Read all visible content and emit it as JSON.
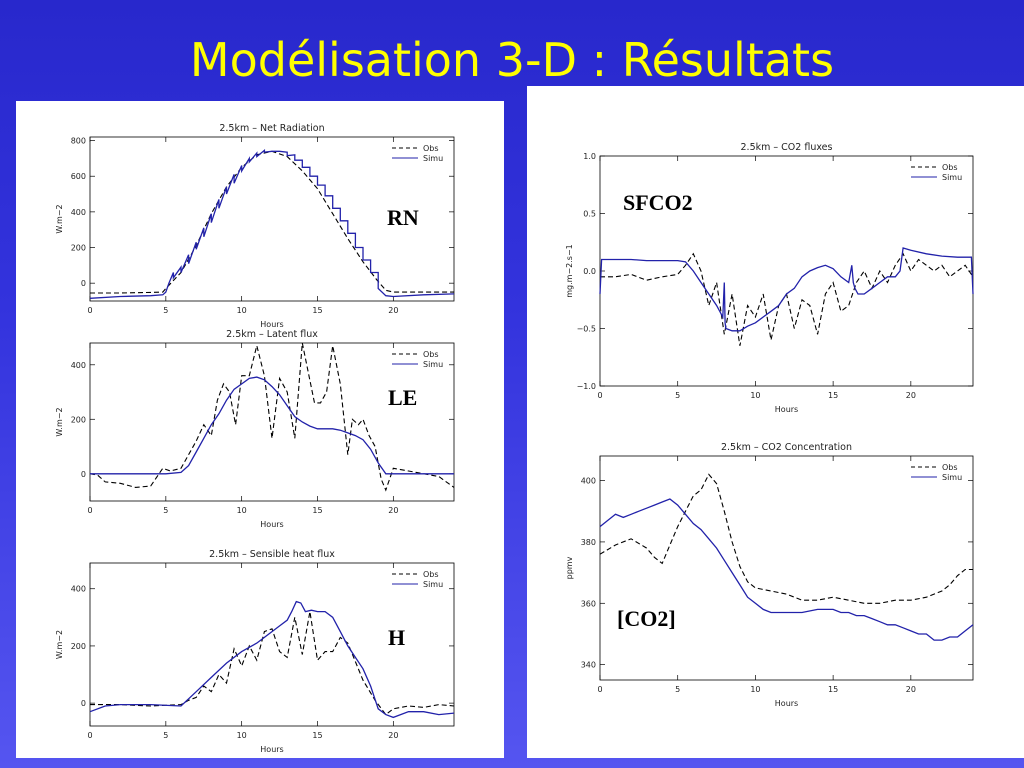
{
  "slide": {
    "title": "Modélisation 3-D : Résultats"
  },
  "colors": {
    "obs": "#000000",
    "simu": "#2222aa",
    "title": "#ffff00"
  },
  "tags": {
    "rn": "RN",
    "le": "LE",
    "h": "H",
    "sfco2": "SFCO2",
    "co2": "[CO2]"
  },
  "chart_data": [
    {
      "id": "rn",
      "type": "line",
      "title": "2.5km  –  Net Radiation",
      "xlabel": "Hours",
      "ylabel": "W.m−2",
      "xlim": [
        0,
        24
      ],
      "ylim": [
        -100,
        820
      ],
      "xticks": [
        0,
        5,
        10,
        15,
        20
      ],
      "yticks": [
        0,
        200,
        400,
        600,
        800
      ],
      "ytick_labels": [
        "0",
        "200",
        "400",
        "600",
        "800"
      ],
      "legend": [
        "Obs",
        "Simu"
      ],
      "series": [
        {
          "name": "Obs",
          "style": "dashed",
          "x": [
            0,
            2,
            4,
            4.8,
            5,
            6,
            7,
            8,
            9,
            10,
            11,
            12,
            13,
            14,
            15,
            16,
            17,
            18,
            18.9,
            19.5,
            20,
            22,
            24
          ],
          "y": [
            -55,
            -55,
            -52,
            -50,
            -30,
            60,
            210,
            390,
            540,
            650,
            720,
            740,
            710,
            630,
            530,
            390,
            250,
            120,
            20,
            -40,
            -50,
            -50,
            -50
          ]
        },
        {
          "name": "Simu",
          "style": "solid",
          "x": [
            0,
            2,
            4,
            4.8,
            5,
            5.2,
            5.5,
            5.5,
            6,
            6,
            6.5,
            6.5,
            7,
            7,
            7.5,
            7.5,
            8,
            8,
            8.5,
            8.5,
            9,
            9,
            9.5,
            9.5,
            10,
            10,
            10.5,
            10.5,
            11,
            11,
            11.5,
            11.5,
            12,
            12.5,
            13,
            13,
            13.5,
            13.5,
            14,
            14,
            14.5,
            14.5,
            15,
            15,
            15.5,
            15.5,
            16,
            16,
            16.5,
            16.5,
            17,
            17,
            17.5,
            17.5,
            18,
            18,
            18.5,
            18.5,
            19,
            19,
            19.5,
            20,
            22,
            24
          ],
          "y": [
            -85,
            -75,
            -70,
            -65,
            -50,
            0,
            60,
            30,
            90,
            60,
            160,
            110,
            230,
            190,
            310,
            260,
            390,
            340,
            470,
            420,
            540,
            500,
            610,
            560,
            660,
            630,
            700,
            680,
            730,
            710,
            745,
            735,
            740,
            740,
            735,
            715,
            720,
            690,
            690,
            650,
            650,
            600,
            600,
            550,
            550,
            490,
            490,
            420,
            420,
            350,
            350,
            280,
            280,
            200,
            200,
            130,
            130,
            60,
            60,
            -30,
            -70,
            -75,
            -65,
            -60
          ]
        }
      ]
    },
    {
      "id": "le",
      "type": "line",
      "title": "2.5km  –  Latent flux",
      "xlabel": "Hours",
      "ylabel": "W.m−2",
      "xlim": [
        0,
        24
      ],
      "ylim": [
        -100,
        480
      ],
      "xticks": [
        0,
        5,
        10,
        15,
        20
      ],
      "yticks": [
        0,
        200,
        400
      ],
      "ytick_labels": [
        "0",
        "200",
        "400"
      ],
      "legend": [
        "Obs",
        "Simu"
      ],
      "series": [
        {
          "name": "Obs",
          "style": "dashed",
          "x": [
            0,
            0.5,
            1,
            2,
            3,
            4,
            4.8,
            5.3,
            6,
            7,
            7.5,
            8,
            8.4,
            8.8,
            9.2,
            9.6,
            10,
            10.5,
            11,
            11.5,
            12,
            12.5,
            13,
            13.5,
            14,
            14.4,
            14.8,
            15.2,
            15.6,
            16,
            16.5,
            17,
            17.3,
            17.7,
            18,
            18.4,
            18.8,
            19.2,
            19.5,
            20,
            21,
            22,
            23,
            24
          ],
          "y": [
            0,
            -5,
            -30,
            -35,
            -50,
            -45,
            20,
            10,
            20,
            120,
            180,
            140,
            270,
            330,
            300,
            180,
            360,
            360,
            470,
            360,
            130,
            350,
            300,
            130,
            480,
            370,
            260,
            260,
            300,
            470,
            330,
            70,
            200,
            180,
            200,
            140,
            100,
            -20,
            -60,
            20,
            10,
            0,
            -10,
            -50
          ]
        },
        {
          "name": "Simu",
          "style": "solid",
          "x": [
            0,
            2,
            4,
            5,
            6,
            6.5,
            7,
            7.5,
            8,
            8.5,
            9,
            9.5,
            10,
            10.5,
            11,
            11.5,
            12,
            12.5,
            13,
            13.5,
            14,
            14.5,
            15,
            15.5,
            16,
            16.5,
            17,
            17.5,
            18,
            18.5,
            19,
            19.5,
            20,
            22,
            24
          ],
          "y": [
            0,
            0,
            0,
            0,
            5,
            30,
            80,
            130,
            180,
            220,
            270,
            310,
            330,
            350,
            355,
            345,
            320,
            290,
            250,
            210,
            190,
            175,
            165,
            165,
            165,
            160,
            150,
            140,
            125,
            90,
            40,
            0,
            0,
            0,
            0
          ]
        }
      ]
    },
    {
      "id": "h",
      "type": "line",
      "title": "2.5km  –  Sensible heat flux",
      "xlabel": "Hours",
      "ylabel": "W.m−2",
      "xlim": [
        0,
        24
      ],
      "ylim": [
        -80,
        490
      ],
      "xticks": [
        0,
        5,
        10,
        15,
        20
      ],
      "yticks": [
        0,
        200,
        400
      ],
      "ytick_labels": [
        "0",
        "200",
        "400"
      ],
      "legend": [
        "Obs",
        "Simu"
      ],
      "series": [
        {
          "name": "Obs",
          "style": "dashed",
          "x": [
            0,
            2,
            4,
            6,
            6.5,
            7,
            7.5,
            8,
            8.5,
            9,
            9.5,
            10,
            10.5,
            11,
            11.5,
            12,
            12.5,
            13,
            13.5,
            14,
            14.5,
            15,
            15.5,
            16,
            16.5,
            17,
            18,
            18.8,
            19.5,
            20,
            21,
            22,
            23,
            24
          ],
          "y": [
            -5,
            -5,
            -10,
            -5,
            10,
            20,
            60,
            40,
            100,
            70,
            190,
            130,
            200,
            150,
            250,
            260,
            180,
            160,
            300,
            170,
            320,
            150,
            180,
            180,
            230,
            210,
            80,
            10,
            -40,
            -20,
            -10,
            -15,
            -5,
            -10
          ]
        },
        {
          "name": "Simu",
          "style": "solid",
          "x": [
            0,
            1,
            2,
            4,
            6,
            7,
            8,
            9,
            10,
            11,
            12,
            12.5,
            13,
            13.3,
            13.6,
            13.9,
            14.2,
            14.6,
            15,
            15.5,
            16,
            16.5,
            17,
            17.5,
            18,
            18.5,
            19,
            19.5,
            20,
            21,
            22,
            23,
            24
          ],
          "y": [
            -30,
            -10,
            -5,
            -5,
            -10,
            40,
            90,
            140,
            180,
            210,
            250,
            270,
            290,
            320,
            355,
            350,
            320,
            325,
            320,
            320,
            300,
            250,
            200,
            160,
            120,
            60,
            -20,
            -40,
            -50,
            -30,
            -30,
            -40,
            -35
          ]
        }
      ]
    },
    {
      "id": "sfco2",
      "type": "line",
      "title": "2.5km  –  CO2 fluxes",
      "xlabel": "Hours",
      "ylabel": "mg.m−2.s−1",
      "xlim": [
        0,
        24
      ],
      "ylim": [
        -1.0,
        1.0
      ],
      "xticks": [
        0,
        5,
        10,
        15,
        20
      ],
      "yticks": [
        -1.0,
        -0.5,
        0.0,
        0.5,
        1.0
      ],
      "ytick_labels": [
        "−1.0",
        "−0.5",
        "0.0",
        "0.5",
        "1.0"
      ],
      "legend": [
        "Obs",
        "Simu"
      ],
      "series": [
        {
          "name": "Obs",
          "style": "dashed",
          "x": [
            0,
            1,
            2,
            3,
            4,
            5,
            5.5,
            6,
            6.5,
            7,
            7.5,
            8,
            8.5,
            9,
            9.5,
            10,
            10.5,
            11,
            11.5,
            12,
            12.5,
            13,
            13.5,
            14,
            14.5,
            15,
            15.5,
            16,
            16.5,
            17,
            17.5,
            18,
            18.5,
            19,
            19.5,
            20,
            20.5,
            21,
            21.5,
            22,
            22.5,
            23,
            23.5,
            24
          ],
          "y": [
            -0.05,
            -0.05,
            -0.03,
            -0.08,
            -0.05,
            -0.03,
            0.05,
            0.15,
            0.0,
            -0.3,
            -0.1,
            -0.55,
            -0.2,
            -0.65,
            -0.3,
            -0.4,
            -0.2,
            -0.6,
            -0.3,
            -0.2,
            -0.5,
            -0.25,
            -0.3,
            -0.55,
            -0.2,
            -0.1,
            -0.35,
            -0.3,
            -0.1,
            0.0,
            -0.15,
            0.0,
            -0.1,
            0.05,
            0.15,
            0.0,
            0.1,
            0.05,
            0.0,
            0.05,
            -0.05,
            0.0,
            0.05,
            -0.05
          ]
        },
        {
          "name": "Simu",
          "style": "solid",
          "x": [
            0,
            0.1,
            1,
            2,
            3,
            4,
            5,
            5.5,
            6,
            6.5,
            7,
            7.5,
            7.9,
            8,
            8.05,
            8.1,
            8.5,
            9,
            9.5,
            10,
            10.5,
            11,
            11.5,
            12,
            12.5,
            13,
            13.5,
            14,
            14.5,
            15,
            15.5,
            16,
            16.2,
            16.3,
            16.4,
            16.6,
            17,
            17.5,
            18,
            18.5,
            19,
            19.3,
            19.5,
            20,
            21,
            22,
            23,
            23.9,
            24
          ],
          "y": [
            -0.2,
            0.1,
            0.1,
            0.1,
            0.09,
            0.09,
            0.09,
            0.08,
            0.0,
            -0.1,
            -0.2,
            -0.3,
            -0.4,
            -0.1,
            -0.45,
            -0.5,
            -0.52,
            -0.52,
            -0.48,
            -0.45,
            -0.4,
            -0.35,
            -0.3,
            -0.2,
            -0.15,
            -0.05,
            0.0,
            0.03,
            0.05,
            0.02,
            -0.05,
            -0.1,
            0.05,
            -0.1,
            -0.15,
            -0.2,
            -0.2,
            -0.15,
            -0.1,
            -0.05,
            -0.05,
            0.0,
            0.2,
            0.18,
            0.15,
            0.13,
            0.12,
            0.12,
            -0.2
          ]
        }
      ]
    },
    {
      "id": "co2",
      "type": "line",
      "title": "2.5km  –  CO2 Concentration",
      "xlabel": "Hours",
      "ylabel": "ppmv",
      "xlim": [
        0,
        24
      ],
      "ylim": [
        335,
        408
      ],
      "xticks": [
        0,
        5,
        10,
        15,
        20
      ],
      "yticks": [
        340,
        360,
        380,
        400
      ],
      "ytick_labels": [
        "340",
        "360",
        "380",
        "400"
      ],
      "legend": [
        "Obs",
        "Simu"
      ],
      "series": [
        {
          "name": "Obs",
          "style": "dashed",
          "x": [
            0,
            1,
            2,
            3,
            3.5,
            4,
            4.5,
            5,
            5.5,
            6,
            6.5,
            7,
            7.5,
            8,
            8.5,
            9,
            9.5,
            10,
            11,
            12,
            13,
            14,
            15,
            16,
            17,
            18,
            19,
            20,
            21,
            22,
            22.5,
            23,
            23.5,
            24
          ],
          "y": [
            376,
            379,
            381,
            378,
            375,
            373,
            379,
            385,
            390,
            395,
            397,
            402,
            399,
            390,
            380,
            372,
            367,
            365,
            364,
            363,
            361,
            361,
            362,
            361,
            360,
            360,
            361,
            361,
            362,
            364,
            366,
            369,
            371,
            371
          ]
        },
        {
          "name": "Simu",
          "style": "solid",
          "x": [
            0,
            0.5,
            1,
            1.5,
            2,
            2.5,
            3,
            3.5,
            4,
            4.5,
            5,
            5.5,
            6,
            6.5,
            7,
            7.5,
            8,
            8.5,
            9,
            9.5,
            10,
            10.5,
            11,
            11.5,
            12,
            13,
            14,
            15,
            15.5,
            16,
            16.5,
            17,
            17.5,
            18,
            18.5,
            19,
            19.5,
            20,
            20.5,
            21,
            21.5,
            22,
            22.5,
            23,
            23.5,
            24
          ],
          "y": [
            385,
            387,
            389,
            388,
            389,
            390,
            391,
            392,
            393,
            394,
            392,
            389,
            386,
            384,
            381,
            378,
            374,
            370,
            366,
            362,
            360,
            358,
            357,
            357,
            357,
            357,
            358,
            358,
            357,
            357,
            356,
            356,
            355,
            354,
            353,
            353,
            352,
            351,
            350,
            350,
            348,
            348,
            349,
            349,
            351,
            353
          ]
        }
      ]
    }
  ]
}
